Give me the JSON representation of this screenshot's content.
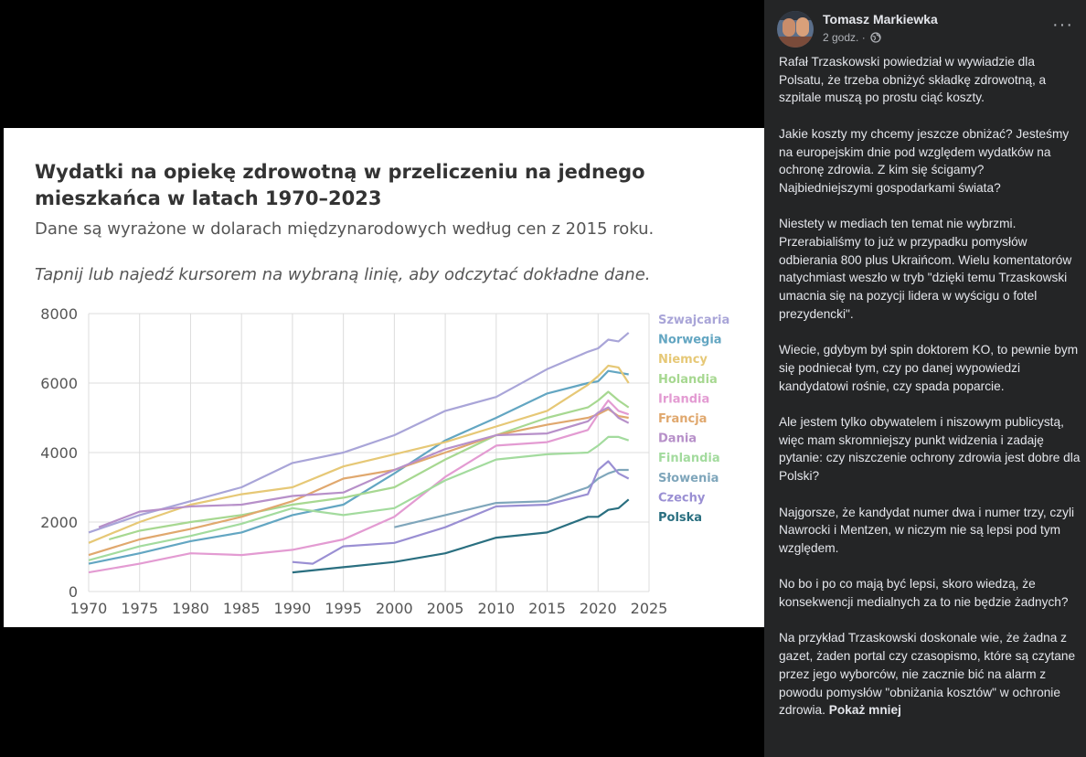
{
  "chart": {
    "title": "Wydatki na opiekę zdrowotną w przeliczeniu na jednego mieszkańca w latach 1970–2023",
    "subtitle": "Dane są wyrażone w dolarach międzynarodowych według cen z 2015 roku.",
    "hint": "Tapnij lub najedź kursorem na wybraną linię, aby odczytać dokładne dane."
  },
  "chart_data": {
    "type": "line",
    "xlim": [
      1970,
      2025
    ],
    "ylim": [
      0,
      8000
    ],
    "xticks": [
      1970,
      1975,
      1980,
      1985,
      1990,
      1995,
      2000,
      2005,
      2010,
      2015,
      2020,
      2025
    ],
    "yticks": [
      0,
      2000,
      4000,
      6000,
      8000
    ],
    "grid": true,
    "legend": "right",
    "series": [
      {
        "name": "Szwajcaria",
        "color": "#a9a5d8",
        "x": [
          1970,
          1975,
          1980,
          1985,
          1990,
          1995,
          2000,
          2005,
          2010,
          2015,
          2019,
          2020,
          2021,
          2022,
          2023
        ],
        "y": [
          1700,
          2200,
          2600,
          3000,
          3700,
          4000,
          4500,
          5200,
          5600,
          6400,
          6900,
          7000,
          7250,
          7200,
          7450
        ]
      },
      {
        "name": "Norwegia",
        "color": "#63a6c2",
        "x": [
          1970,
          1975,
          1980,
          1985,
          1990,
          1995,
          2000,
          2005,
          2010,
          2015,
          2019,
          2020,
          2021,
          2022,
          2023
        ],
        "y": [
          800,
          1100,
          1450,
          1700,
          2200,
          2500,
          3400,
          4350,
          5000,
          5700,
          6000,
          6050,
          6350,
          6300,
          6250
        ]
      },
      {
        "name": "Niemcy",
        "color": "#e6c876",
        "x": [
          1970,
          1975,
          1980,
          1985,
          1990,
          1995,
          2000,
          2005,
          2010,
          2015,
          2019,
          2020,
          2021,
          2022,
          2023
        ],
        "y": [
          1400,
          2000,
          2500,
          2800,
          3000,
          3600,
          3950,
          4300,
          4750,
          5200,
          5950,
          6200,
          6500,
          6450,
          6000
        ]
      },
      {
        "name": "Holandia",
        "color": "#a7d891",
        "x": [
          1972,
          1975,
          1980,
          1985,
          1990,
          1995,
          2000,
          2005,
          2010,
          2015,
          2019,
          2020,
          2021,
          2022,
          2023
        ],
        "y": [
          1500,
          1750,
          2000,
          2200,
          2500,
          2700,
          3000,
          3800,
          4500,
          5000,
          5300,
          5500,
          5750,
          5500,
          5300
        ]
      },
      {
        "name": "Irlandia",
        "color": "#e39bd2",
        "x": [
          1970,
          1975,
          1980,
          1985,
          1990,
          1995,
          2000,
          2005,
          2010,
          2015,
          2019,
          2020,
          2021,
          2022,
          2023
        ],
        "y": [
          550,
          800,
          1100,
          1050,
          1200,
          1500,
          2150,
          3300,
          4200,
          4300,
          4650,
          5100,
          5500,
          5200,
          5100
        ]
      },
      {
        "name": "Francja",
        "color": "#e0a86e",
        "x": [
          1970,
          1975,
          1980,
          1985,
          1990,
          1995,
          2000,
          2005,
          2010,
          2015,
          2019,
          2020,
          2021,
          2022,
          2023
        ],
        "y": [
          1050,
          1500,
          1800,
          2150,
          2600,
          3250,
          3500,
          4000,
          4500,
          4800,
          5000,
          5100,
          5250,
          5050,
          5000
        ]
      },
      {
        "name": "Dania",
        "color": "#b790c9",
        "x": [
          1971,
          1975,
          1980,
          1985,
          1990,
          1995,
          2000,
          2005,
          2010,
          2015,
          2019,
          2020,
          2021,
          2022,
          2023
        ],
        "y": [
          1850,
          2300,
          2450,
          2500,
          2750,
          2850,
          3500,
          4100,
          4500,
          4550,
          4900,
          5150,
          5300,
          5000,
          4850
        ]
      },
      {
        "name": "Finlandia",
        "color": "#a3db9e",
        "x": [
          1970,
          1975,
          1980,
          1985,
          1990,
          1995,
          2000,
          2005,
          2010,
          2015,
          2019,
          2020,
          2021,
          2022,
          2023
        ],
        "y": [
          900,
          1300,
          1600,
          1950,
          2400,
          2200,
          2400,
          3200,
          3800,
          3950,
          4000,
          4200,
          4450,
          4450,
          4350
        ]
      },
      {
        "name": "Słowenia",
        "color": "#7fa6bb",
        "x": [
          2000,
          2005,
          2010,
          2015,
          2019,
          2020,
          2021,
          2022,
          2023
        ],
        "y": [
          1850,
          2200,
          2550,
          2600,
          3000,
          3250,
          3400,
          3500,
          3500
        ]
      },
      {
        "name": "Czechy",
        "color": "#9a8fd3",
        "x": [
          1990,
          1992,
          1995,
          2000,
          2005,
          2010,
          2015,
          2019,
          2020,
          2021,
          2022,
          2023
        ],
        "y": [
          850,
          800,
          1300,
          1400,
          1850,
          2450,
          2500,
          2800,
          3500,
          3750,
          3400,
          3250
        ]
      },
      {
        "name": "Polska",
        "color": "#2a6f80",
        "x": [
          1990,
          1995,
          2000,
          2005,
          2010,
          2015,
          2019,
          2020,
          2021,
          2022,
          2023
        ],
        "y": [
          550,
          700,
          850,
          1100,
          1550,
          1700,
          2150,
          2150,
          2350,
          2400,
          2650
        ]
      }
    ]
  },
  "post": {
    "author": "Tomasz Markiewka",
    "time": "2 godz.",
    "dot": "·",
    "more": "···",
    "paragraphs": [
      "Rafał Trzaskowski powiedział w wywiadzie dla Polsatu, że trzeba obniżyć składkę zdrowotną, a szpitale muszą po prostu ciąć koszty.",
      "Jakie koszty my chcemy jeszcze obniżać? Jesteśmy na europejskim dnie pod względem wydatków na ochronę zdrowia. Z kim się ścigamy? Najbiedniejszymi gospodarkami świata?",
      "Niestety w mediach ten temat nie wybrzmi. Przerabialiśmy to już w przypadku pomysłów odbierania 800 plus Ukraińcom. Wielu komentatorów natychmiast weszło w tryb \"dzięki temu Trzaskowski umacnia się na pozycji lidera w wyścigu o fotel prezydencki\".",
      "Wiecie, gdybym był spin doktorem KO, to pewnie bym się podniecał tym, czy po danej wypowiedzi kandydatowi rośnie, czy spada poparcie.",
      "Ale jestem tylko obywatelem i niszowym publicystą, więc mam skromniejszy punkt widzenia i zadaję pytanie: czy niszczenie ochrony zdrowia jest dobre dla Polski?",
      "Najgorsze, że kandydat numer dwa i numer trzy, czyli Nawrocki i Mentzen, w niczym nie są lepsi pod tym względem.",
      "No bo i po co mają być lepsi, skoro wiedzą, że konsekwencji medialnych za to nie będzie żadnych?",
      "Na przykład Trzaskowski doskonale wie, że żadna z gazet, żaden portal czy czasopismo, które są czytane przez jego wyborców, nie zacznie bić na alarm z powodu pomysłów \"obniżania kosztów\" w ochronie zdrowia."
    ],
    "show_less": "Pokaż mniej"
  }
}
